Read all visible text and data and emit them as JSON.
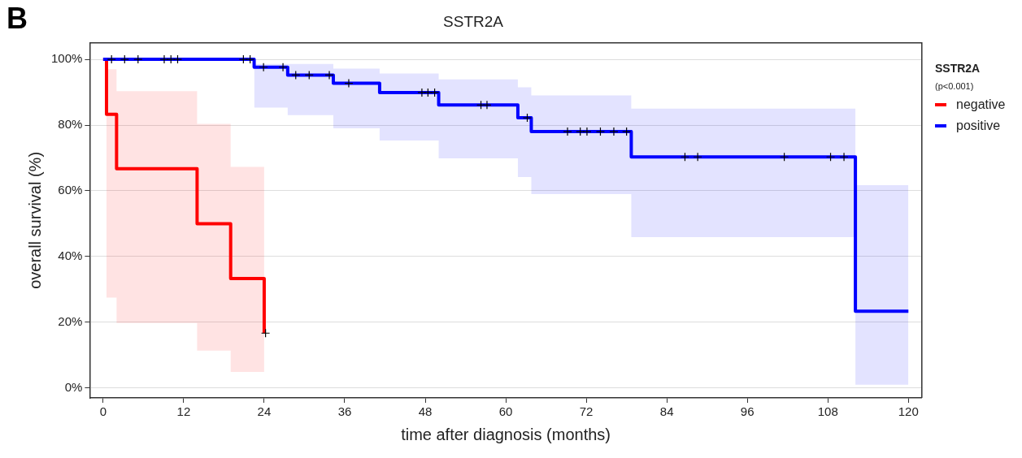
{
  "chart_data": {
    "type": "step",
    "title": "SSTR2A",
    "xlabel": "time after diagnosis (months)",
    "ylabel": "overall survival (%)",
    "legend_title": "SSTR2A",
    "annotations": [
      "B",
      "(p<0.001)"
    ],
    "legend": "right",
    "grid": "y",
    "line_style": "solid",
    "xlim": [
      -2,
      122
    ],
    "xticks": [
      0,
      12,
      24,
      36,
      48,
      60,
      72,
      84,
      96,
      108,
      120
    ],
    "ylim": [
      -3,
      105
    ],
    "yticks": [
      {
        "value": 0,
        "label": "0%"
      },
      {
        "value": 20,
        "label": "20%"
      },
      {
        "value": 40,
        "label": "40%"
      },
      {
        "value": 60,
        "label": "60%"
      },
      {
        "value": 80,
        "label": "80%"
      },
      {
        "value": 100,
        "label": "100%"
      }
    ],
    "series": [
      {
        "name": "negative",
        "color": "#ff0000",
        "x": [
          0,
          0.5,
          2,
          14,
          19,
          24
        ],
        "values": [
          100,
          83.3,
          66.7,
          50,
          33.3,
          16.7
        ],
        "lower": [
          null,
          27.5,
          19.8,
          11.4,
          4.9,
          4.9
        ],
        "upper": [
          null,
          97,
          90.3,
          80.4,
          67.3,
          51.7
        ]
      },
      {
        "name": "positive",
        "color": "#0000ff",
        "x": [
          0,
          22.5,
          27.5,
          34.3,
          41.2,
          50,
          61.8,
          63.8,
          78.7,
          112.1,
          120
        ],
        "values": [
          100,
          97.6,
          95.2,
          92.7,
          89.9,
          86.1,
          82.2,
          78,
          70.3,
          23.4,
          23.4
        ],
        "lower": [
          null,
          85.3,
          83,
          79,
          75.3,
          69.9,
          64.2,
          59,
          45.9,
          1,
          1
        ],
        "upper": [
          null,
          98.6,
          98.6,
          97.2,
          95.7,
          93.9,
          91.5,
          89,
          85,
          61.7,
          61.7
        ]
      },
      {
        "type": "scatter",
        "marker": "cross",
        "color": "#000000",
        "x": [
          24.2
        ],
        "values": [
          16.7
        ]
      },
      {
        "type": "scatter",
        "marker": "cross",
        "color": "#000000",
        "x": [
          1.25,
          3.2,
          5.2,
          9.1,
          10.1,
          11.1,
          20.9,
          21.9,
          23.9,
          26.8,
          28.7,
          30.7,
          33.7,
          36.6,
          47.5,
          48.4,
          49.4,
          56.3,
          57.2,
          63.2,
          69.2,
          71.1,
          72.1,
          74.1,
          76.1,
          78,
          86.7,
          88.6,
          101.5,
          108.4,
          110.4
        ],
        "values": [
          100,
          100,
          100,
          100,
          100,
          100,
          100,
          100,
          97.6,
          97.6,
          95.2,
          95.2,
          95.2,
          92.7,
          89.9,
          89.9,
          89.9,
          86.1,
          86.1,
          82.2,
          78,
          78,
          78,
          78,
          78,
          78,
          70.3,
          70.3,
          70.3,
          70.3,
          70.3
        ]
      }
    ]
  }
}
